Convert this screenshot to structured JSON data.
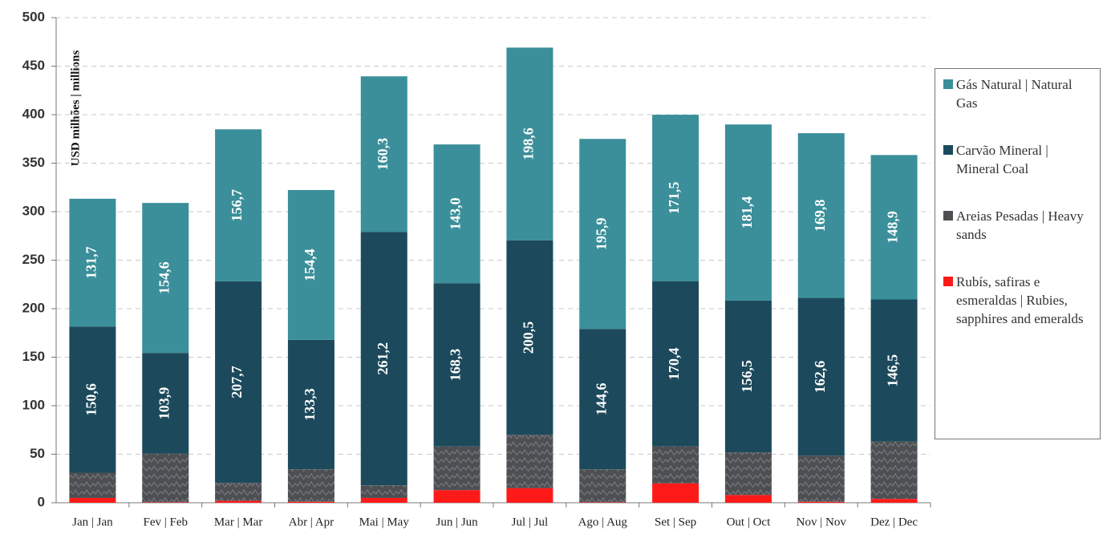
{
  "chart_data": {
    "type": "stacked-bar",
    "y_label": "USD milhões | millions",
    "categories": [
      "Jan | Jan",
      "Fev | Feb",
      "Mar | Mar",
      "Abr | Apr",
      "Mai | May",
      "Jun | Jun",
      "Jul | Jul",
      "Ago | Aug",
      "Set | Sep",
      "Out | Oct",
      "Nov | Nov",
      "Dez | Dec"
    ],
    "series": [
      {
        "name": "Rubís, safiras e esmeraldas | Rubies, sapphires and emeralds",
        "color": "#ff1a1a",
        "values": [
          5,
          0.5,
          2,
          1,
          5,
          13,
          15,
          0.5,
          20,
          8,
          1,
          4
        ]
      },
      {
        "name": "Areias Pesadas | Heavy sands",
        "color": "#4d4f52",
        "values": [
          26,
          50,
          18.5,
          33.6,
          13,
          45,
          55,
          34,
          38,
          44,
          47.5,
          59
        ]
      },
      {
        "name": "Carvão Mineral | Mineral Coal",
        "color": "#1c4a5c",
        "values": [
          150.6,
          103.9,
          207.7,
          133.3,
          261.2,
          168.3,
          200.5,
          144.6,
          170.4,
          156.5,
          162.6,
          146.5
        ],
        "value_labels": [
          "150,6",
          "103,9",
          "207,7",
          "133,3",
          "261,2",
          "168,3",
          "200,5",
          "144,6",
          "170,4",
          "156,5",
          "162,6",
          "146,5"
        ]
      },
      {
        "name": "Gás Natural | Natural Gas",
        "color": "#3a8f9a",
        "values": [
          131.7,
          154.6,
          156.7,
          154.4,
          160.3,
          143.0,
          198.6,
          195.9,
          171.5,
          181.4,
          169.8,
          148.9
        ],
        "value_labels": [
          "131,7",
          "154,6",
          "156,7",
          "154,4",
          "160,3",
          "143,0",
          "198,6",
          "195,9",
          "171,5",
          "181,4",
          "169,8",
          "148,9"
        ]
      }
    ],
    "ylim": [
      0,
      500
    ],
    "yticks": [
      0,
      50,
      100,
      150,
      200,
      250,
      300,
      350,
      400,
      450,
      500
    ],
    "grid": true,
    "legend": "right"
  }
}
